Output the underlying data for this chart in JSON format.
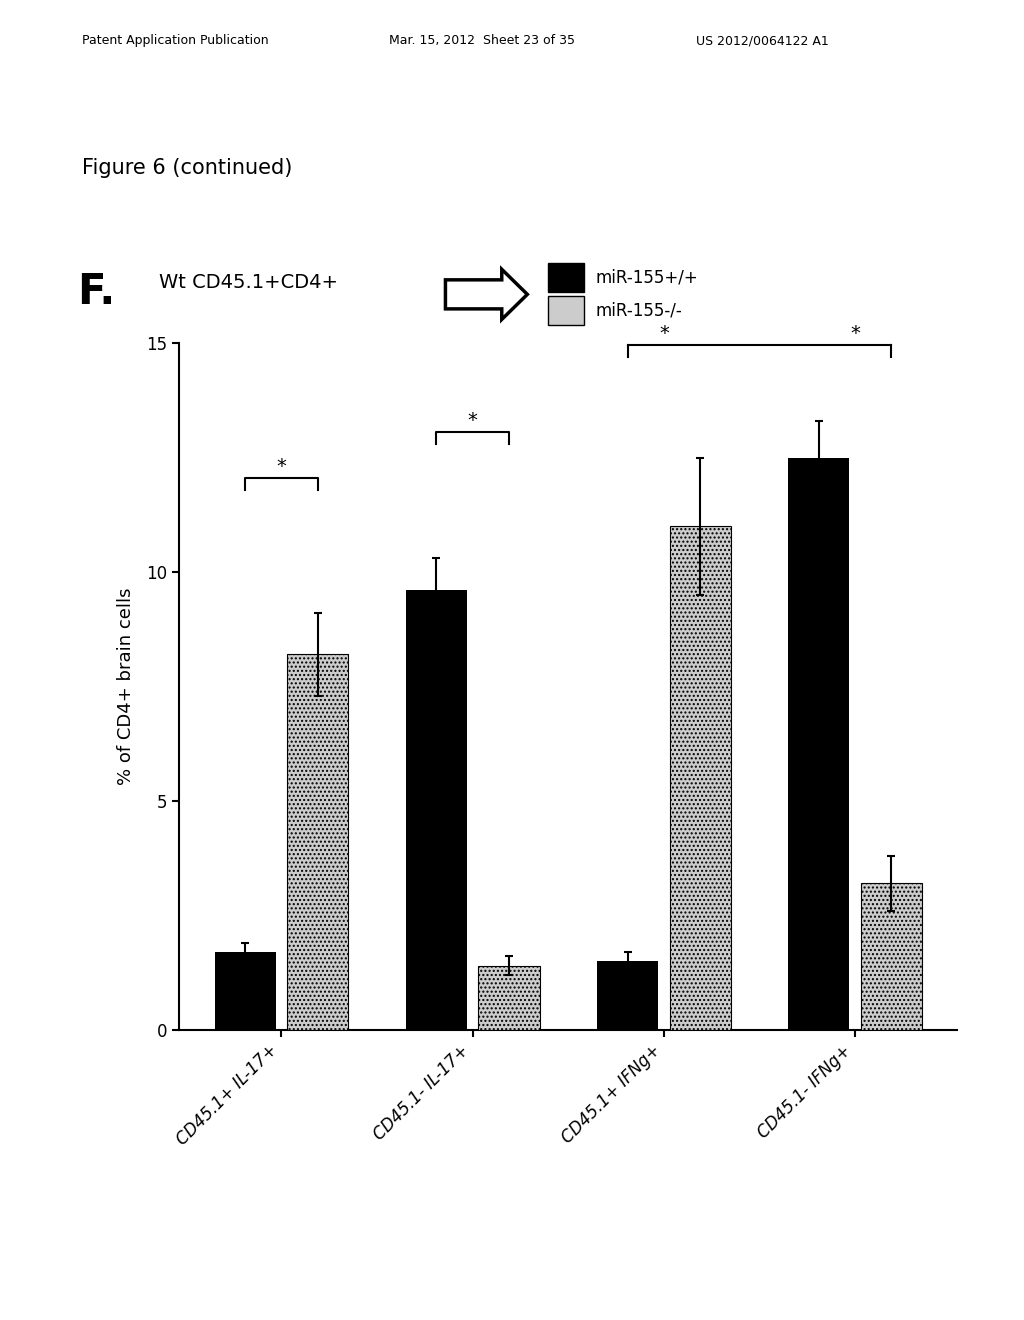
{
  "categories": [
    "CD45.1+ IL-17+",
    "CD45.1- IL-17+",
    "CD45.1+ IFNg+",
    "CD45.1- IFNg+"
  ],
  "black_values": [
    1.7,
    9.6,
    1.5,
    12.5
  ],
  "gray_values": [
    8.2,
    1.4,
    11.0,
    3.2
  ],
  "black_errors": [
    0.2,
    0.7,
    0.2,
    0.8
  ],
  "gray_errors": [
    0.9,
    0.2,
    1.5,
    0.6
  ],
  "ylabel": "% of CD4+ brain cells",
  "ylim": [
    0,
    15
  ],
  "yticks": [
    0,
    5,
    10,
    15
  ],
  "legend_labels": [
    "miR-155+/+",
    "miR-155-/-"
  ],
  "fig_label": "F.",
  "subtitle": "Wt CD45.1+CD4+",
  "figure_caption": "Figure 6 (continued)",
  "black_color": "#000000",
  "gray_color": "#cccccc",
  "background_color": "#ffffff",
  "patent_left": "Patent Application Publication",
  "patent_mid": "Mar. 15, 2012  Sheet 23 of 35",
  "patent_right": "US 2012/0064122 A1"
}
